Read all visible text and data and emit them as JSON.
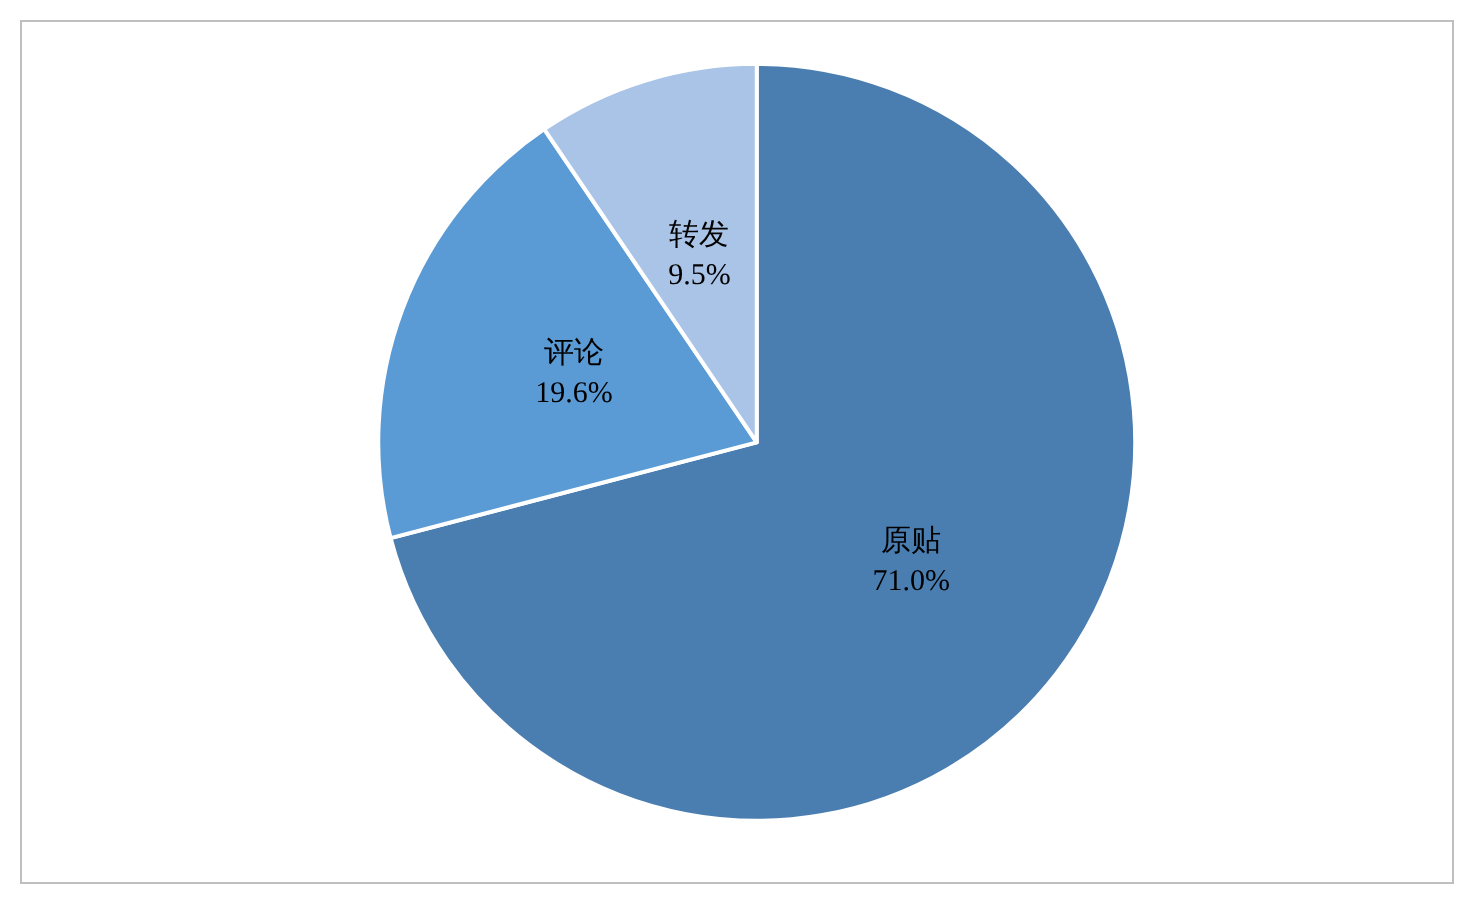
{
  "chart_data": {
    "type": "pie",
    "categories": [
      "原贴",
      "评论",
      "转发"
    ],
    "values": [
      71.0,
      19.6,
      9.5
    ],
    "colors": [
      "#4a7eb0",
      "#5b9bd5",
      "#a9c4e6"
    ],
    "value_labels": [
      "71.0%",
      "19.6%",
      "9.5%"
    ],
    "legend": false
  }
}
